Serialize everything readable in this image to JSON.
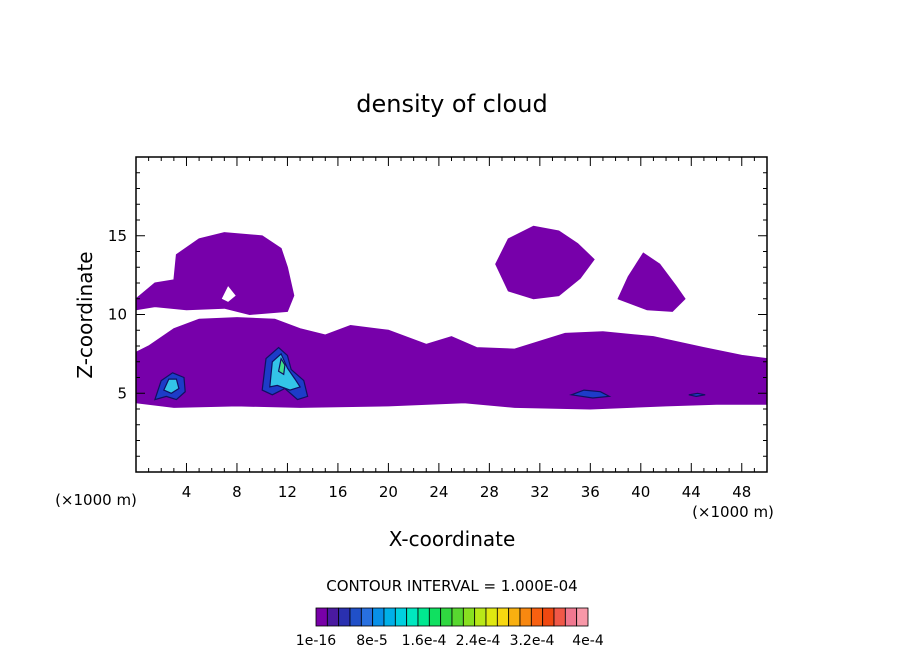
{
  "chart_data": {
    "type": "heatmap",
    "title": "density of cloud",
    "xlabel": "X-coordinate",
    "ylabel": "Z-coordinate",
    "x_unit": "(×1000 m)",
    "y_unit": "(×1000 m)",
    "xlim": [
      0,
      50
    ],
    "ylim": [
      0,
      20
    ],
    "x_ticks": [
      "4",
      "8",
      "12",
      "16",
      "20",
      "24",
      "28",
      "32",
      "36",
      "40",
      "44",
      "48"
    ],
    "y_ticks": [
      "5",
      "10",
      "15"
    ],
    "contour_interval_text": "CONTOUR INTERVAL = 1.000E-04",
    "colorbar_labels": [
      "1e-16",
      "8e-5",
      "1.6e-4",
      "2.4e-4",
      "3.2e-4",
      "4e-4"
    ],
    "colorbar_colors": [
      "#7800a8",
      "#4a1aa0",
      "#2a30b0",
      "#2050c8",
      "#2870e0",
      "#0890e8",
      "#00b0e8",
      "#00d0e0",
      "#00e8c0",
      "#00e890",
      "#10e060",
      "#30d840",
      "#58d830",
      "#88e020",
      "#b8e818",
      "#e0e810",
      "#f8d810",
      "#f8b010",
      "#f88810",
      "#f86010",
      "#f04810",
      "#f05848",
      "#f07890",
      "#f898a8"
    ],
    "regions": [
      {
        "name": "low cloud layer",
        "level": "1e-16",
        "color": "#7700aa",
        "polygon": [
          [
            0,
            4.4
          ],
          [
            3,
            4.1
          ],
          [
            8,
            4.2
          ],
          [
            13,
            4.1
          ],
          [
            20,
            4.2
          ],
          [
            26,
            4.4
          ],
          [
            30,
            4.1
          ],
          [
            36,
            4.0
          ],
          [
            42,
            4.2
          ],
          [
            46,
            4.3
          ],
          [
            50,
            4.3
          ],
          [
            50,
            7.2
          ],
          [
            48,
            7.4
          ],
          [
            45,
            7.9
          ],
          [
            41,
            8.6
          ],
          [
            37,
            8.9
          ],
          [
            34,
            8.8
          ],
          [
            30,
            7.8
          ],
          [
            27,
            7.9
          ],
          [
            25,
            8.6
          ],
          [
            23,
            8.1
          ],
          [
            20,
            9.0
          ],
          [
            17,
            9.3
          ],
          [
            15,
            8.7
          ],
          [
            13,
            9.1
          ],
          [
            11,
            9.7
          ],
          [
            8,
            9.8
          ],
          [
            5,
            9.7
          ],
          [
            3,
            9.1
          ],
          [
            1,
            8.0
          ],
          [
            0,
            7.6
          ]
        ]
      },
      {
        "name": "upper cloud west",
        "level": "1e-16",
        "color": "#7700aa",
        "polygon": [
          [
            0,
            11.0
          ],
          [
            1.5,
            12.0
          ],
          [
            3,
            12.2
          ],
          [
            3.2,
            13.8
          ],
          [
            5,
            14.8
          ],
          [
            7,
            15.2
          ],
          [
            10,
            15.0
          ],
          [
            11.5,
            14.2
          ],
          [
            12,
            13.0
          ],
          [
            12.5,
            11.2
          ],
          [
            12,
            10.2
          ],
          [
            9,
            10.0
          ],
          [
            7,
            10.4
          ],
          [
            4,
            10.3
          ],
          [
            1.5,
            10.5
          ],
          [
            0,
            10.3
          ]
        ]
      },
      {
        "name": "upper cloud center",
        "level": "1e-16",
        "color": "#7700aa",
        "polygon": [
          [
            28.5,
            13.2
          ],
          [
            29.5,
            14.8
          ],
          [
            31.5,
            15.6
          ],
          [
            33.5,
            15.3
          ],
          [
            35,
            14.5
          ],
          [
            36.3,
            13.5
          ],
          [
            35.2,
            12.3
          ],
          [
            33.5,
            11.2
          ],
          [
            31.5,
            11.0
          ],
          [
            29.5,
            11.5
          ]
        ]
      },
      {
        "name": "upper cloud east",
        "level": "1e-16",
        "color": "#7700aa",
        "polygon": [
          [
            38.2,
            11.0
          ],
          [
            39,
            12.4
          ],
          [
            40.2,
            13.9
          ],
          [
            41.5,
            13.2
          ],
          [
            42.8,
            11.8
          ],
          [
            43.5,
            11.0
          ],
          [
            42.5,
            10.2
          ],
          [
            40.5,
            10.3
          ]
        ]
      },
      {
        "name": "core near x=3",
        "level": "8e-5",
        "color": "#1d3cc8",
        "polygon": [
          [
            1.5,
            4.6
          ],
          [
            2.0,
            5.8
          ],
          [
            2.9,
            6.3
          ],
          [
            3.8,
            6.0
          ],
          [
            3.9,
            5.1
          ],
          [
            3.2,
            4.6
          ],
          [
            2.4,
            4.8
          ]
        ]
      },
      {
        "name": "core near x=3 inner",
        "level": "1.6e-4",
        "color": "#33c4e8",
        "polygon": [
          [
            2.2,
            5.2
          ],
          [
            2.6,
            5.9
          ],
          [
            3.2,
            5.9
          ],
          [
            3.4,
            5.3
          ],
          [
            2.8,
            5.0
          ]
        ]
      },
      {
        "name": "core near x=12",
        "level": "8e-5",
        "color": "#1d3cc8",
        "polygon": [
          [
            10.0,
            5.2
          ],
          [
            10.3,
            7.2
          ],
          [
            11.3,
            7.9
          ],
          [
            12.0,
            7.4
          ],
          [
            12.3,
            6.5
          ],
          [
            13.3,
            5.8
          ],
          [
            13.6,
            4.8
          ],
          [
            12.8,
            4.6
          ],
          [
            11.8,
            5.3
          ],
          [
            10.8,
            4.9
          ]
        ]
      },
      {
        "name": "core near x=12 middle",
        "level": "1.6e-4",
        "color": "#33c4e8",
        "polygon": [
          [
            10.6,
            5.4
          ],
          [
            10.8,
            7.0
          ],
          [
            11.5,
            7.5
          ],
          [
            12.0,
            6.6
          ],
          [
            12.6,
            5.9
          ],
          [
            13.0,
            5.4
          ],
          [
            12.2,
            5.2
          ],
          [
            11.2,
            5.5
          ]
        ]
      },
      {
        "name": "core near x=12 inner",
        "level": "2.4e-4",
        "color": "#3ee08a",
        "polygon": [
          [
            11.3,
            6.4
          ],
          [
            11.5,
            7.2
          ],
          [
            11.8,
            6.8
          ],
          [
            11.7,
            6.2
          ]
        ]
      },
      {
        "name": "weak core near x=36",
        "level": "8e-5",
        "color": "#1d3cc8",
        "polygon": [
          [
            34.5,
            4.9
          ],
          [
            35.5,
            5.2
          ],
          [
            36.8,
            5.1
          ],
          [
            37.5,
            4.8
          ],
          [
            36.2,
            4.7
          ]
        ]
      },
      {
        "name": "weak core near x=44.5",
        "level": "8e-5",
        "color": "#1d3cc8",
        "polygon": [
          [
            43.8,
            4.9
          ],
          [
            44.5,
            5.0
          ],
          [
            45.1,
            4.9
          ],
          [
            44.4,
            4.8
          ]
        ]
      }
    ],
    "holes": [
      {
        "name": "gap near x=7",
        "polygon": [
          [
            6.8,
            11.0
          ],
          [
            7.3,
            11.8
          ],
          [
            7.9,
            11.2
          ],
          [
            7.3,
            10.8
          ]
        ]
      }
    ]
  }
}
